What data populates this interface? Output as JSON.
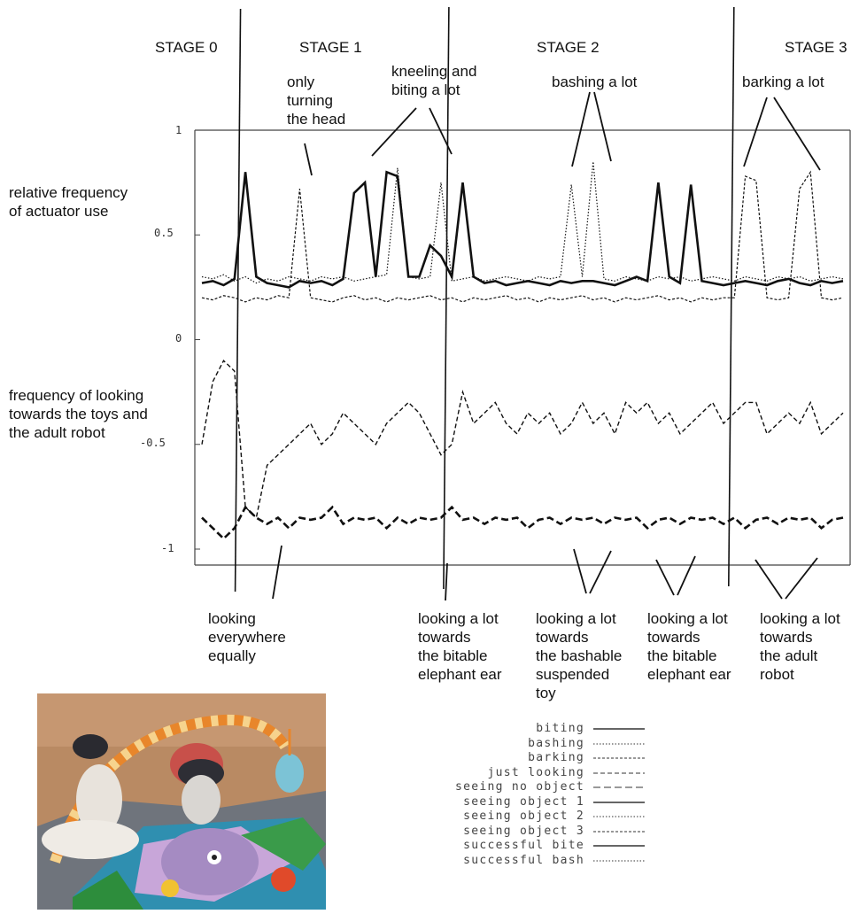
{
  "stages": [
    "STAGE 0",
    "STAGE 1",
    "STAGE 2",
    "STAGE 3"
  ],
  "y_ticks": [
    "1",
    "0.5",
    "0",
    "-0.5",
    "-1"
  ],
  "left_labels": {
    "top": "relative frequency\nof actuator use",
    "bottom": "frequency of looking\ntowards the toys and\nthe adult robot"
  },
  "annotations": {
    "turning": "only\nturning\nthe head",
    "kneeling": "kneeling and\nbiting a lot",
    "bashing": "bashing a lot",
    "barking": "barking a lot",
    "everywhere": "looking\neverywhere\nequally",
    "ear1": "looking a lot\ntowards\nthe bitable\nelephant ear",
    "bashable": "looking a lot\ntowards\nthe bashable\nsuspended\ntoy",
    "ear2": "looking a lot\ntowards\nthe bitable\nelephant ear",
    "adult": "looking a lot\ntowards\nthe adult\nrobot"
  },
  "legend": [
    {
      "label": "biting",
      "style": "solid"
    },
    {
      "label": "bashing",
      "style": "dotted"
    },
    {
      "label": "barking",
      "style": "finedash"
    },
    {
      "label": "just looking",
      "style": "dash"
    },
    {
      "label": "seeing no object",
      "style": "longdash"
    },
    {
      "label": "seeing object 1",
      "style": "solid"
    },
    {
      "label": "seeing object 2",
      "style": "dotted"
    },
    {
      "label": "seeing object 3",
      "style": "finedash"
    },
    {
      "label": "successful bite",
      "style": "solid"
    },
    {
      "label": "successful bash",
      "style": "dotted"
    }
  ],
  "chart_data": {
    "type": "line",
    "ylim": [
      -1,
      1
    ],
    "y_ticks": [
      1,
      0.5,
      0,
      -0.5,
      -1
    ],
    "stage_boundaries_fraction": [
      0.067,
      0.385,
      0.82
    ],
    "series": [
      {
        "name": "biting",
        "values": [
          0.27,
          0.28,
          0.26,
          0.29,
          0.8,
          0.3,
          0.27,
          0.26,
          0.25,
          0.28,
          0.27,
          0.28,
          0.26,
          0.29,
          0.7,
          0.75,
          0.3,
          0.8,
          0.78,
          0.3,
          0.3,
          0.45,
          0.4,
          0.3,
          0.75,
          0.3,
          0.27,
          0.28,
          0.26,
          0.27,
          0.28,
          0.27,
          0.26,
          0.28,
          0.27,
          0.28,
          0.28,
          0.27,
          0.26,
          0.28,
          0.3,
          0.28,
          0.75,
          0.3,
          0.27,
          0.74,
          0.28,
          0.27,
          0.26,
          0.27,
          0.28,
          0.27,
          0.26,
          0.28,
          0.29,
          0.27,
          0.26,
          0.28,
          0.27,
          0.28
        ]
      },
      {
        "name": "bashing",
        "values": [
          0.3,
          0.29,
          0.31,
          0.28,
          0.3,
          0.27,
          0.29,
          0.28,
          0.3,
          0.29,
          0.28,
          0.3,
          0.29,
          0.3,
          0.28,
          0.29,
          0.3,
          0.31,
          0.82,
          0.3,
          0.29,
          0.3,
          0.75,
          0.28,
          0.29,
          0.3,
          0.28,
          0.29,
          0.3,
          0.29,
          0.28,
          0.3,
          0.29,
          0.3,
          0.74,
          0.3,
          0.85,
          0.29,
          0.28,
          0.3,
          0.29,
          0.28,
          0.3,
          0.29,
          0.3,
          0.28,
          0.29,
          0.3,
          0.29,
          0.28,
          0.3,
          0.29,
          0.28,
          0.3,
          0.29,
          0.3,
          0.28,
          0.29,
          0.3,
          0.29
        ]
      },
      {
        "name": "barking",
        "values": [
          0.2,
          0.19,
          0.21,
          0.2,
          0.18,
          0.2,
          0.19,
          0.21,
          0.2,
          0.72,
          0.2,
          0.19,
          0.18,
          0.2,
          0.21,
          0.19,
          0.2,
          0.18,
          0.2,
          0.19,
          0.2,
          0.21,
          0.19,
          0.2,
          0.18,
          0.2,
          0.19,
          0.2,
          0.21,
          0.19,
          0.2,
          0.18,
          0.2,
          0.19,
          0.2,
          0.21,
          0.19,
          0.2,
          0.18,
          0.2,
          0.19,
          0.2,
          0.21,
          0.19,
          0.2,
          0.18,
          0.2,
          0.19,
          0.2,
          0.2,
          0.78,
          0.76,
          0.2,
          0.19,
          0.2,
          0.72,
          0.8,
          0.2,
          0.19,
          0.2
        ]
      },
      {
        "name": "just looking",
        "values": [
          -0.5,
          -0.2,
          -0.1,
          -0.15,
          -0.8,
          -0.85,
          -0.6,
          -0.55,
          -0.5,
          -0.45,
          -0.4,
          -0.5,
          -0.45,
          -0.35,
          -0.4,
          -0.45,
          -0.5,
          -0.4,
          -0.35,
          -0.3,
          -0.35,
          -0.45,
          -0.55,
          -0.5,
          -0.25,
          -0.4,
          -0.35,
          -0.3,
          -0.4,
          -0.45,
          -0.35,
          -0.4,
          -0.35,
          -0.45,
          -0.4,
          -0.3,
          -0.4,
          -0.35,
          -0.45,
          -0.3,
          -0.35,
          -0.3,
          -0.4,
          -0.35,
          -0.45,
          -0.4,
          -0.35,
          -0.3,
          -0.4,
          -0.35,
          -0.3,
          -0.3,
          -0.45,
          -0.4,
          -0.35,
          -0.4,
          -0.3,
          -0.45,
          -0.4,
          -0.35
        ]
      },
      {
        "name": "seeing no object",
        "values": [
          -0.85,
          -0.9,
          -0.95,
          -0.9,
          -0.8,
          -0.85,
          -0.88,
          -0.85,
          -0.9,
          -0.85,
          -0.86,
          -0.85,
          -0.8,
          -0.88,
          -0.85,
          -0.86,
          -0.85,
          -0.9,
          -0.85,
          -0.88,
          -0.85,
          -0.86,
          -0.85,
          -0.8,
          -0.86,
          -0.85,
          -0.88,
          -0.85,
          -0.86,
          -0.85,
          -0.9,
          -0.86,
          -0.85,
          -0.88,
          -0.85,
          -0.86,
          -0.85,
          -0.88,
          -0.85,
          -0.86,
          -0.85,
          -0.9,
          -0.86,
          -0.85,
          -0.88,
          -0.85,
          -0.86,
          -0.85,
          -0.88,
          -0.85,
          -0.9,
          -0.86,
          -0.85,
          -0.88,
          -0.85,
          -0.86,
          -0.85,
          -0.9,
          -0.86,
          -0.85
        ]
      }
    ]
  }
}
